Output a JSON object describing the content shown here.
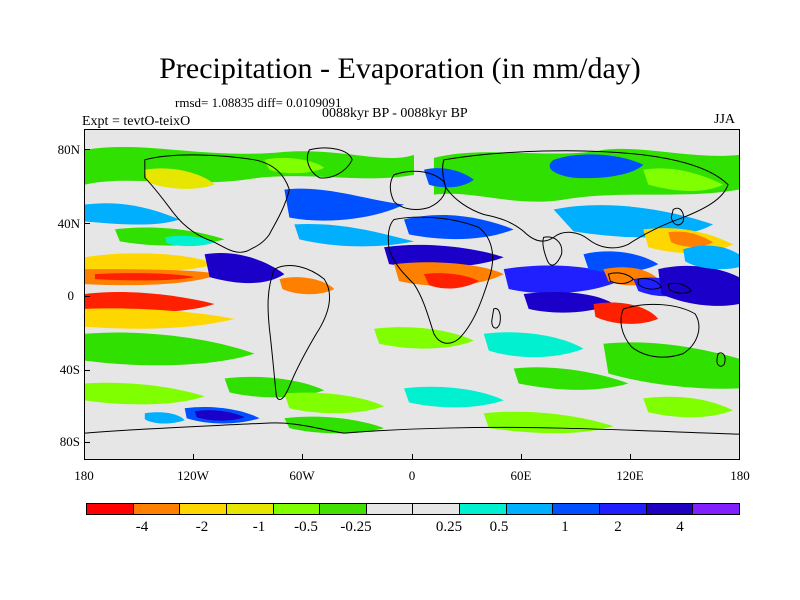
{
  "title": "Precipitation - Evaporation (in mm/day)",
  "stats": "rmsd= 1.08835  diff= 0.0109091",
  "subtitle": "0088kyr BP - 0088kyr BP",
  "expt": "Expt = tevtO-teixO",
  "season": "JJA",
  "axes": {
    "y_ticks": [
      "80N",
      "40N",
      "0",
      "40S",
      "80S"
    ],
    "x_ticks": [
      "180",
      "120W",
      "60W",
      "0",
      "60E",
      "120E",
      "180"
    ]
  },
  "colorbar": {
    "colors": [
      "#ff0000",
      "#ff8000",
      "#ffd700",
      "#e6e600",
      "#80ff00",
      "#40e000",
      "#e6e6e6",
      "#e6e6e6",
      "#00f0d0",
      "#00b0ff",
      "#0050ff",
      "#2020ff",
      "#2000c0",
      "#8020ff"
    ],
    "labels": [
      "-4",
      "-2",
      "-1",
      "-0.5",
      "-0.25",
      "0.25",
      "0.5",
      "1",
      "2",
      "4"
    ]
  },
  "palette": {
    "neutral": "#e6e6e6",
    "red": "#ff2000",
    "orange": "#ff8000",
    "yellow": "#e6e600",
    "lightgreen": "#80ff00",
    "green": "#30e000",
    "cyan": "#00f0d0",
    "lightblue": "#00b0ff",
    "blue": "#0050ff",
    "darkblue": "#2020ff",
    "navy": "#1a00c8",
    "violet": "#8020ff",
    "coast": "#000000"
  }
}
